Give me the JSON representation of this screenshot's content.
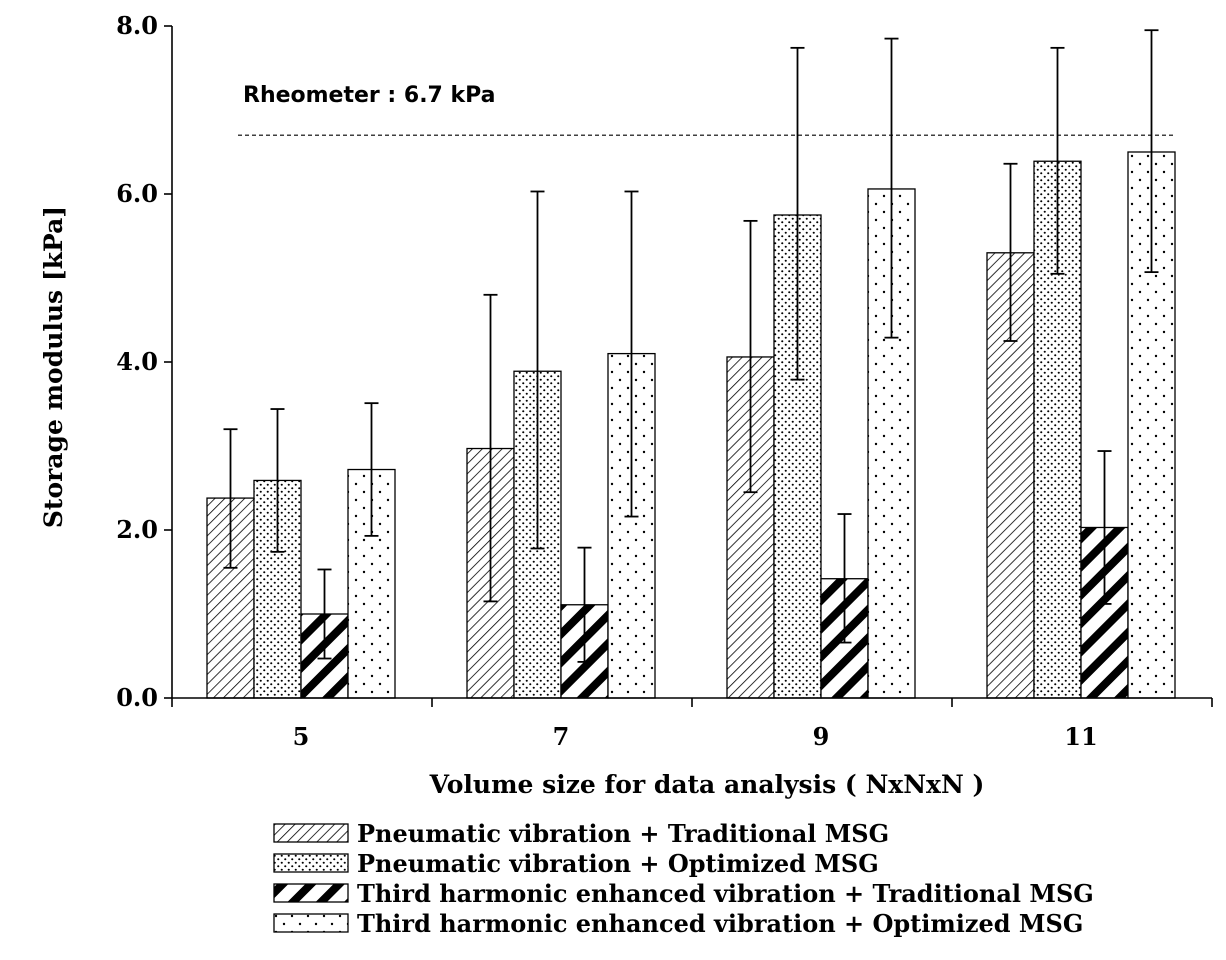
{
  "chart_data": {
    "type": "bar",
    "title": "",
    "xlabel": "Volume size for data analysis ( NxNxN )",
    "ylabel": "Storage modulus [kPa]",
    "ylim": [
      0,
      8
    ],
    "yticks": [
      "0.0",
      "2.0",
      "4.0",
      "6.0",
      "8.0"
    ],
    "categories": [
      "5",
      "7",
      "9",
      "11"
    ],
    "grid": false,
    "legend_position": "bottom",
    "series": [
      {
        "name": "Pneumatic vibration + Traditional MSG",
        "pattern": "diagonal-fine",
        "values": [
          2.38,
          2.97,
          4.06,
          5.3
        ],
        "err_low": [
          1.55,
          1.15,
          2.45,
          4.25
        ],
        "err_high": [
          3.2,
          4.8,
          5.68,
          6.36
        ]
      },
      {
        "name": "Pneumatic vibration + Optimized MSG",
        "pattern": "dots-dense",
        "values": [
          2.59,
          3.89,
          5.75,
          6.39
        ],
        "err_low": [
          1.74,
          1.78,
          3.79,
          5.05
        ],
        "err_high": [
          3.44,
          6.03,
          7.74,
          7.74
        ]
      },
      {
        "name": "Third harmonic enhanced vibration + Traditional MSG",
        "pattern": "diagonal-bold",
        "values": [
          1.0,
          1.11,
          1.42,
          2.03
        ],
        "err_low": [
          0.47,
          0.43,
          0.66,
          1.12
        ],
        "err_high": [
          1.53,
          1.79,
          2.19,
          2.94
        ]
      },
      {
        "name": "Third harmonic enhanced vibration + Optimized MSG",
        "pattern": "dots-sparse",
        "values": [
          2.72,
          4.1,
          6.06,
          6.5
        ],
        "err_low": [
          1.93,
          2.16,
          4.29,
          5.07
        ],
        "err_high": [
          3.51,
          6.03,
          7.85,
          7.95
        ]
      }
    ],
    "reference_line": {
      "value": 6.7,
      "style": "dashed",
      "label": "Rheometer : 6.7 kPa"
    }
  }
}
